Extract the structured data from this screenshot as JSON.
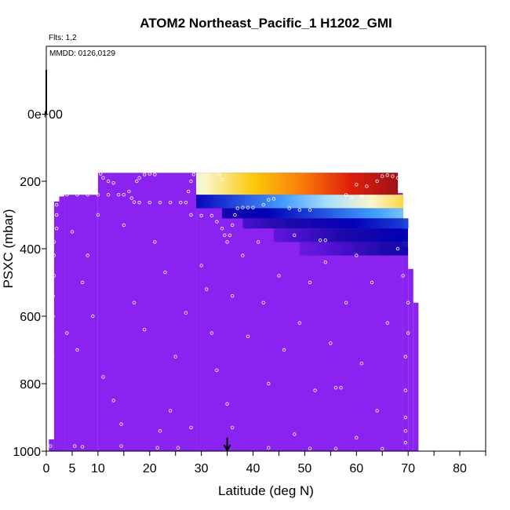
{
  "chart_data": {
    "type": "heatmap",
    "title": "ATOM2 Northeast_Pacific_1 H1202_GMI",
    "flights_note": "Flts: 1,2",
    "dates_note": "MMDD: 0126,0129",
    "xlabel": "Latitude (deg N)",
    "ylabel": "PSXC (mbar)",
    "xlim": [
      0,
      85
    ],
    "ylim": [
      1000,
      -200
    ],
    "x_ticks": [
      0,
      5,
      10,
      20,
      30,
      40,
      50,
      60,
      70,
      80
    ],
    "x_minor_ticks": [
      15,
      25,
      35,
      45,
      55,
      65,
      75,
      85
    ],
    "y_ticks": [
      1000,
      800,
      600,
      400,
      200
    ],
    "y_tick_labels": [
      "1000",
      "800",
      "600",
      "400",
      "200"
    ],
    "zero_label": "0e+00",
    "background_color": "#8a22f0",
    "marker_latitude": 35,
    "columns": [
      {
        "lat": [
          0.5,
          1.5
        ],
        "ptop": 965,
        "pbot": 1000
      },
      {
        "lat": [
          1.5,
          2.5
        ],
        "ptop": 260,
        "pbot": 1000
      },
      {
        "lat": [
          2.5,
          3.5
        ],
        "ptop": 245,
        "pbot": 1000
      },
      {
        "lat": [
          3.5,
          10
        ],
        "ptop": 240,
        "pbot": 1000
      },
      {
        "lat": [
          10,
          29
        ],
        "ptop": 175,
        "pbot": 1000
      },
      {
        "lat": [
          29,
          68
        ],
        "ptop": 175,
        "pbot": 1000
      },
      {
        "lat": [
          68,
          69
        ],
        "ptop": 235,
        "pbot": 1000
      },
      {
        "lat": [
          69,
          70
        ],
        "ptop": 395,
        "pbot": 1000
      },
      {
        "lat": [
          70,
          71
        ],
        "ptop": 460,
        "pbot": 1000
      },
      {
        "lat": [
          71,
          72
        ],
        "ptop": 560,
        "pbot": 1000
      }
    ],
    "high_regions": [
      {
        "lat": [
          29,
          68
        ],
        "p": [
          175,
          240
        ],
        "from": 0.62,
        "to": 1.0
      },
      {
        "lat": [
          29,
          69
        ],
        "p": [
          240,
          280
        ],
        "from": 0.28,
        "to": 0.7
      },
      {
        "lat": [
          34,
          69
        ],
        "p": [
          280,
          310
        ],
        "from": 0.2,
        "to": 0.5
      },
      {
        "lat": [
          38,
          70
        ],
        "p": [
          310,
          340
        ],
        "from": 0.12,
        "to": 0.35
      },
      {
        "lat": [
          44,
          70
        ],
        "p": [
          340,
          380
        ],
        "from": 0.08,
        "to": 0.28
      },
      {
        "lat": [
          49,
          70
        ],
        "p": [
          380,
          420
        ],
        "from": 0.06,
        "to": 0.22
      }
    ],
    "colorscale": [
      "#8a22f0",
      "#5a14d8",
      "#1a0aa8",
      "#0000b4",
      "#2050e0",
      "#40a0ff",
      "#a8e6ff",
      "#ffffc8",
      "#ffd000",
      "#ff8000",
      "#e02000",
      "#a01010"
    ],
    "track_points": [
      {
        "lat": 10.5,
        "p": 178
      },
      {
        "lat": 11,
        "p": 190
      },
      {
        "lat": 12,
        "p": 200
      },
      {
        "lat": 13,
        "p": 205
      },
      {
        "lat": 17.5,
        "p": 200
      },
      {
        "lat": 18,
        "p": 190
      },
      {
        "lat": 19,
        "p": 180
      },
      {
        "lat": 20,
        "p": 178
      },
      {
        "lat": 21,
        "p": 180
      },
      {
        "lat": 16,
        "p": 230
      },
      {
        "lat": 16.5,
        "p": 250
      },
      {
        "lat": 17,
        "p": 262
      },
      {
        "lat": 18,
        "p": 263
      },
      {
        "lat": 20,
        "p": 263
      },
      {
        "lat": 22,
        "p": 263
      },
      {
        "lat": 24,
        "p": 263
      },
      {
        "lat": 26,
        "p": 263
      },
      {
        "lat": 27,
        "p": 263
      },
      {
        "lat": 3,
        "p": 240
      },
      {
        "lat": 4,
        "p": 240
      },
      {
        "lat": 6,
        "p": 240
      },
      {
        "lat": 8,
        "p": 240
      },
      {
        "lat": 10,
        "p": 240
      },
      {
        "lat": 12,
        "p": 240
      },
      {
        "lat": 14,
        "p": 240
      },
      {
        "lat": 15,
        "p": 240
      },
      {
        "lat": 28,
        "p": 200
      },
      {
        "lat": 28.5,
        "p": 180
      },
      {
        "lat": 29.5,
        "p": 170
      },
      {
        "lat": 31,
        "p": 170
      },
      {
        "lat": 33,
        "p": 170
      },
      {
        "lat": 33.5,
        "p": 180
      },
      {
        "lat": 34,
        "p": 195
      },
      {
        "lat": 27.5,
        "p": 230
      },
      {
        "lat": 28,
        "p": 300
      },
      {
        "lat": 30,
        "p": 302
      },
      {
        "lat": 32,
        "p": 302
      },
      {
        "lat": 33,
        "p": 320
      },
      {
        "lat": 34,
        "p": 340
      },
      {
        "lat": 34.5,
        "p": 360
      },
      {
        "lat": 35,
        "p": 380
      },
      {
        "lat": 35.5,
        "p": 360
      },
      {
        "lat": 36,
        "p": 330
      },
      {
        "lat": 36.5,
        "p": 300
      },
      {
        "lat": 37,
        "p": 280
      },
      {
        "lat": 38,
        "p": 278
      },
      {
        "lat": 39,
        "p": 278
      },
      {
        "lat": 40,
        "p": 278
      },
      {
        "lat": 42,
        "p": 270
      },
      {
        "lat": 43,
        "p": 255
      },
      {
        "lat": 44,
        "p": 252
      },
      {
        "lat": 47,
        "p": 280
      },
      {
        "lat": 49,
        "p": 285
      },
      {
        "lat": 51,
        "p": 285
      },
      {
        "lat": 53,
        "p": 375
      },
      {
        "lat": 54,
        "p": 375
      },
      {
        "lat": 60,
        "p": 210
      },
      {
        "lat": 62,
        "p": 215
      },
      {
        "lat": 64,
        "p": 200
      },
      {
        "lat": 65,
        "p": 185
      },
      {
        "lat": 66,
        "p": 182
      },
      {
        "lat": 67,
        "p": 185
      },
      {
        "lat": 68,
        "p": 190
      },
      {
        "lat": 58,
        "p": 240
      },
      {
        "lat": 59,
        "p": 250
      },
      {
        "lat": 61,
        "p": 245
      },
      {
        "lat": 2,
        "p": 270
      },
      {
        "lat": 2,
        "p": 300
      },
      {
        "lat": 2,
        "p": 340
      },
      {
        "lat": 1.5,
        "p": 380
      },
      {
        "lat": 1.5,
        "p": 420
      },
      {
        "lat": 1.5,
        "p": 480
      },
      {
        "lat": 1.3,
        "p": 540
      },
      {
        "lat": 1.3,
        "p": 600
      },
      {
        "lat": 1.2,
        "p": 660
      },
      {
        "lat": 1.2,
        "p": 720
      },
      {
        "lat": 1,
        "p": 780
      },
      {
        "lat": 1,
        "p": 850
      },
      {
        "lat": 0.8,
        "p": 920
      },
      {
        "lat": 0.8,
        "p": 985
      },
      {
        "lat": 5,
        "p": 350
      },
      {
        "lat": 7,
        "p": 500
      },
      {
        "lat": 8,
        "p": 420
      },
      {
        "lat": 9,
        "p": 600
      },
      {
        "lat": 6,
        "p": 700
      },
      {
        "lat": 11,
        "p": 780
      },
      {
        "lat": 13,
        "p": 850
      },
      {
        "lat": 15,
        "p": 330
      },
      {
        "lat": 17,
        "p": 560
      },
      {
        "lat": 19,
        "p": 640
      },
      {
        "lat": 21,
        "p": 380
      },
      {
        "lat": 23,
        "p": 470
      },
      {
        "lat": 25,
        "p": 720
      },
      {
        "lat": 27,
        "p": 590
      },
      {
        "lat": 24,
        "p": 880
      },
      {
        "lat": 30,
        "p": 450
      },
      {
        "lat": 31,
        "p": 520
      },
      {
        "lat": 32,
        "p": 650
      },
      {
        "lat": 33,
        "p": 760
      },
      {
        "lat": 35,
        "p": 860
      },
      {
        "lat": 36,
        "p": 540
      },
      {
        "lat": 38,
        "p": 420
      },
      {
        "lat": 39,
        "p": 660
      },
      {
        "lat": 41,
        "p": 380
      },
      {
        "lat": 42,
        "p": 560
      },
      {
        "lat": 43,
        "p": 800
      },
      {
        "lat": 45,
        "p": 480
      },
      {
        "lat": 46,
        "p": 700
      },
      {
        "lat": 48,
        "p": 360
      },
      {
        "lat": 49,
        "p": 620
      },
      {
        "lat": 51,
        "p": 500
      },
      {
        "lat": 52,
        "p": 820
      },
      {
        "lat": 54,
        "p": 440
      },
      {
        "lat": 55,
        "p": 680
      },
      {
        "lat": 56,
        "p": 812
      },
      {
        "lat": 57,
        "p": 812
      },
      {
        "lat": 58,
        "p": 560
      },
      {
        "lat": 60,
        "p": 420
      },
      {
        "lat": 61,
        "p": 740
      },
      {
        "lat": 63,
        "p": 500
      },
      {
        "lat": 64,
        "p": 880
      },
      {
        "lat": 66,
        "p": 620
      },
      {
        "lat": 68,
        "p": 400
      },
      {
        "lat": 69,
        "p": 480
      },
      {
        "lat": 70,
        "p": 560
      },
      {
        "lat": 70,
        "p": 650
      },
      {
        "lat": 69.5,
        "p": 720
      },
      {
        "lat": 69.5,
        "p": 820
      },
      {
        "lat": 69.5,
        "p": 900
      },
      {
        "lat": 69.5,
        "p": 940
      },
      {
        "lat": 69.5,
        "p": 975
      },
      {
        "lat": 5.5,
        "p": 985
      },
      {
        "lat": 7,
        "p": 987
      },
      {
        "lat": 14.5,
        "p": 985
      },
      {
        "lat": 21.5,
        "p": 990
      },
      {
        "lat": 25.5,
        "p": 990
      },
      {
        "lat": 43,
        "p": 990
      },
      {
        "lat": 51,
        "p": 992
      },
      {
        "lat": 56,
        "p": 992
      },
      {
        "lat": 65,
        "p": 993
      },
      {
        "lat": 14.5,
        "p": 920
      },
      {
        "lat": 22,
        "p": 940
      },
      {
        "lat": 36,
        "p": 930
      },
      {
        "lat": 48,
        "p": 950
      },
      {
        "lat": 60,
        "p": 960
      },
      {
        "lat": 4,
        "p": 650
      },
      {
        "lat": 10,
        "p": 300
      },
      {
        "lat": 28,
        "p": 930
      }
    ]
  }
}
